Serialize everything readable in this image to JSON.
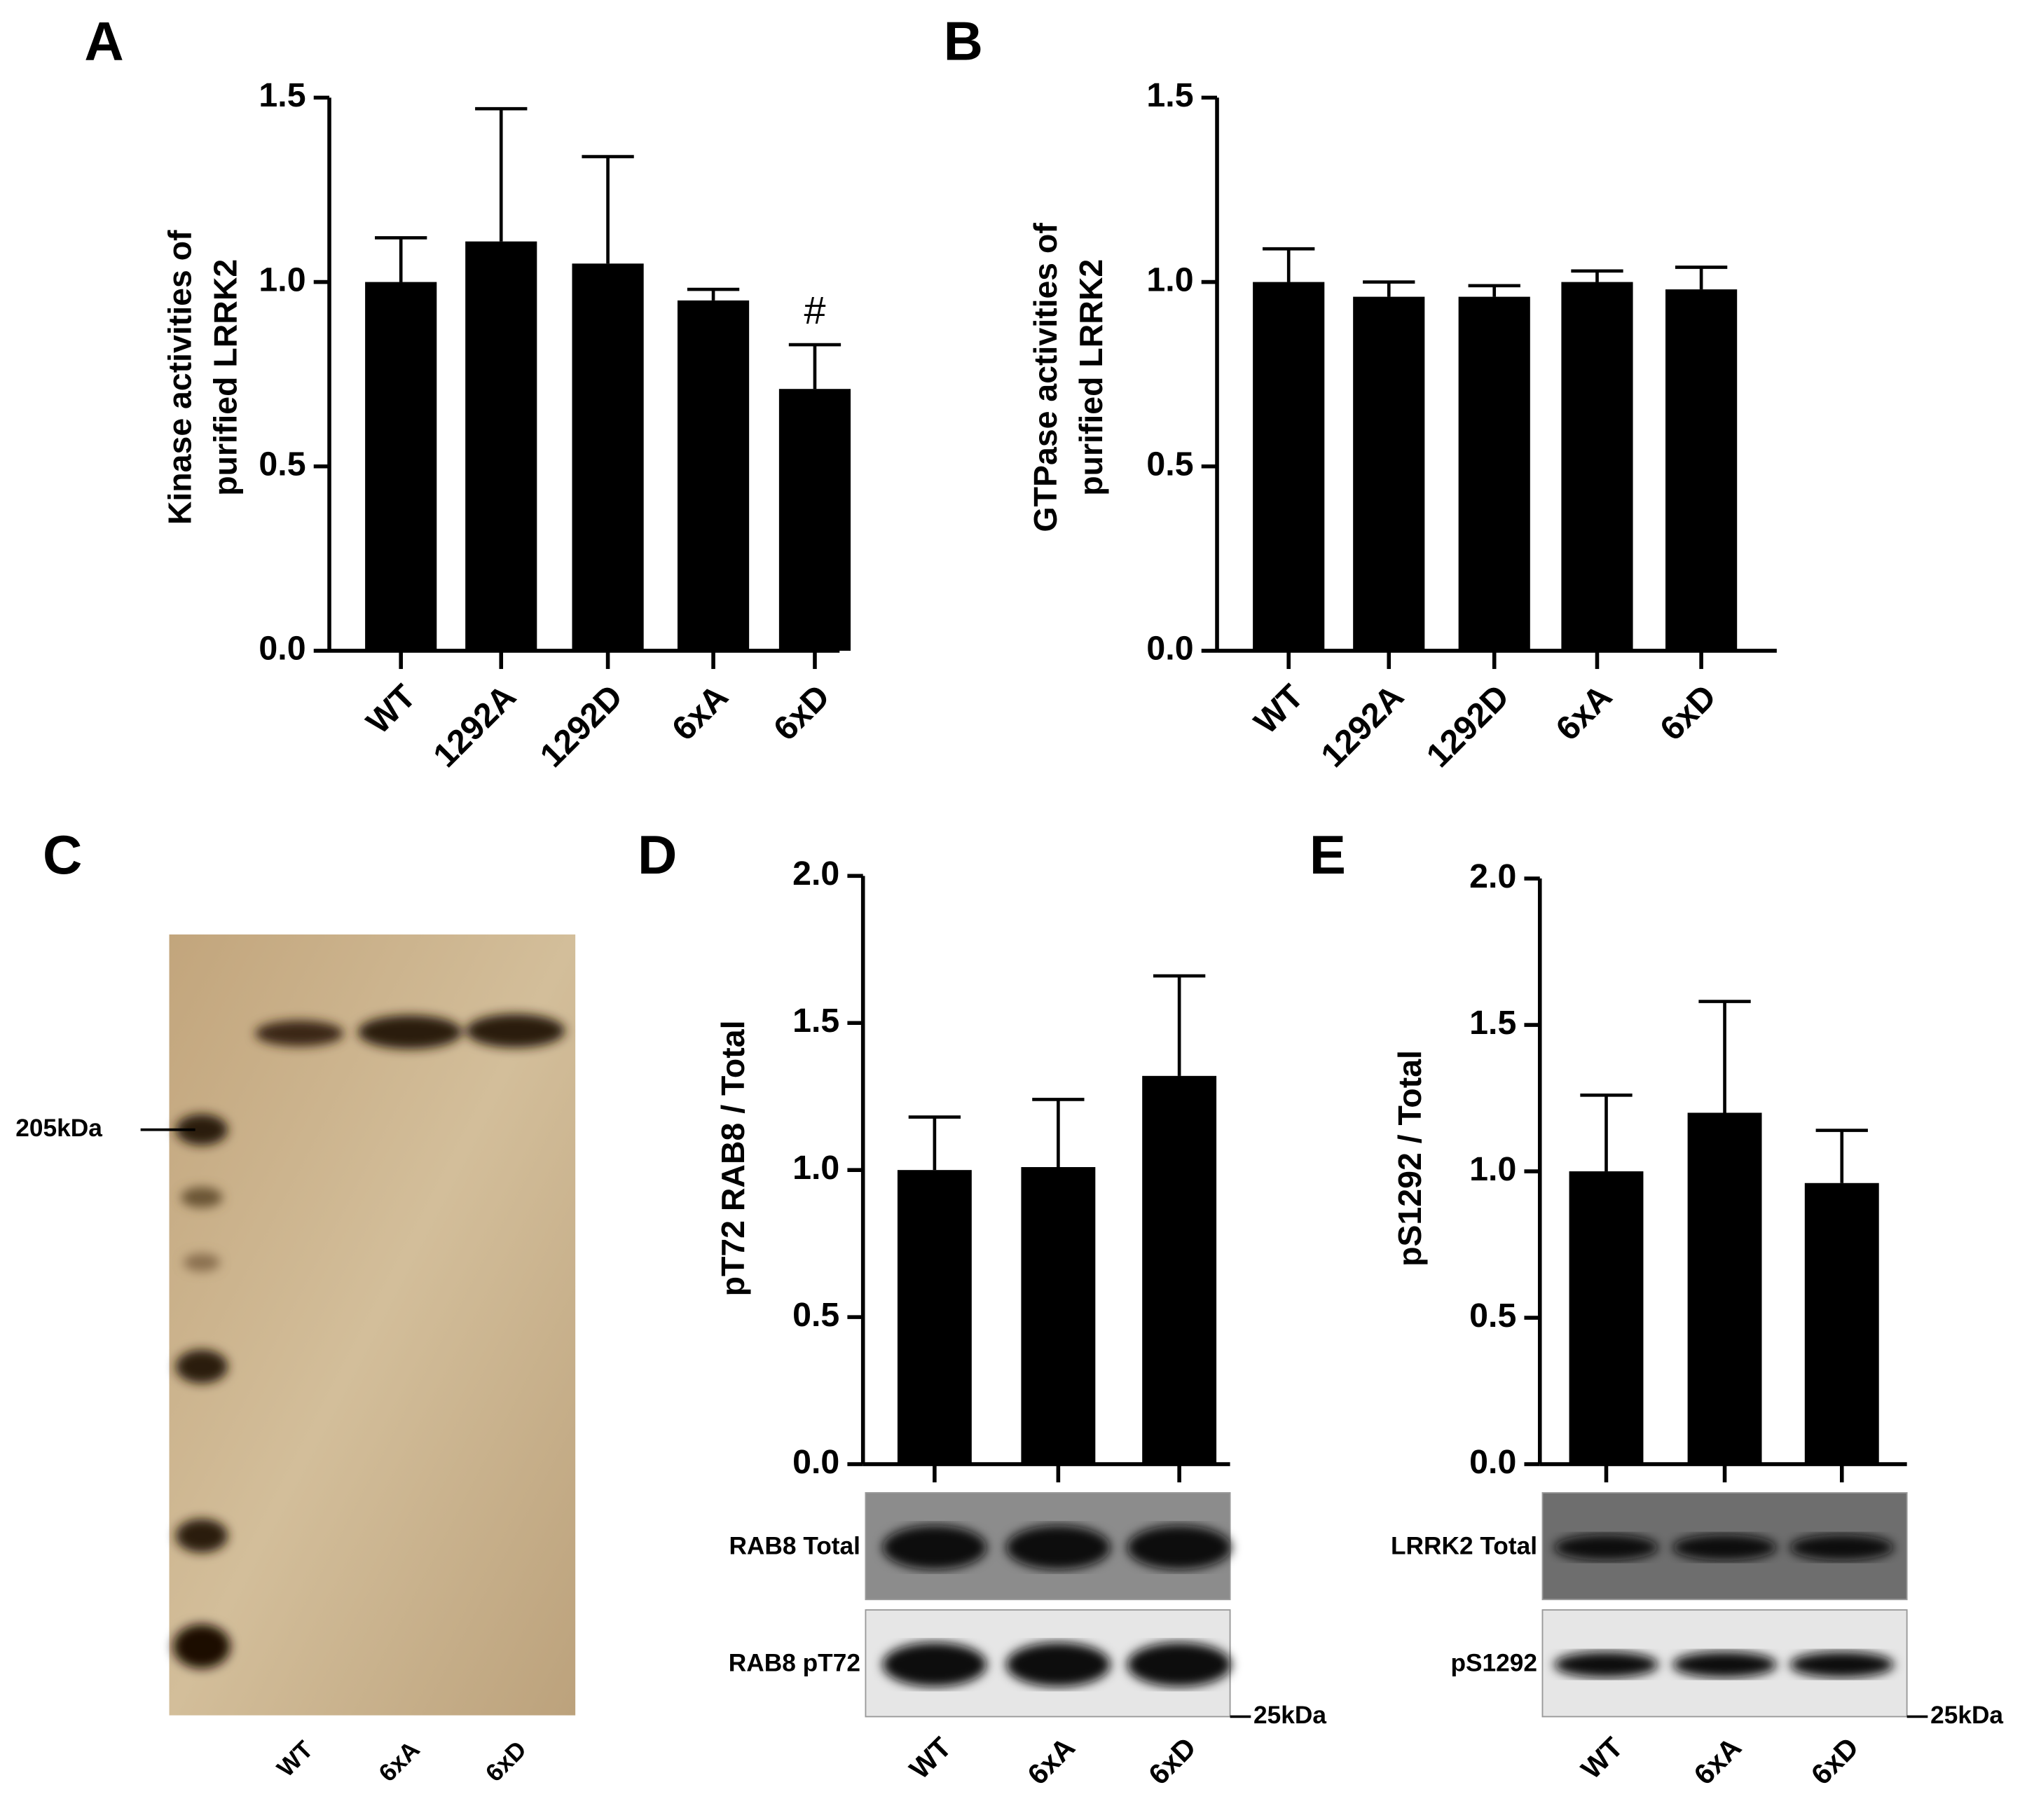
{
  "chart_data": [
    {
      "type": "bar",
      "panel": "A",
      "ylabel": [
        "Kinase activities of",
        "purified LRRK2"
      ],
      "categories": [
        "WT",
        "1292A",
        "1292D",
        "6xA",
        "6xD"
      ],
      "values": [
        1.0,
        1.11,
        1.05,
        0.95,
        0.71
      ],
      "errors": [
        0.12,
        0.36,
        0.29,
        0.03,
        0.12
      ],
      "annotation": "#",
      "color": "#000000",
      "ylim": [
        0,
        1.5
      ],
      "yticks": [
        {
          "value": 0,
          "label": "0.0"
        },
        0.5,
        {
          "value": 1,
          "label": "1.0"
        },
        1.5
      ]
    },
    {
      "type": "bar",
      "panel": "B",
      "ylabel": [
        "GTPase activities of",
        "purified LRRK2"
      ],
      "categories": [
        "WT",
        "1292A",
        "1292D",
        "6xA",
        "6xD"
      ],
      "values": [
        1.0,
        0.96,
        0.96,
        1.0,
        0.98
      ],
      "errors": [
        0.09,
        0.04,
        0.03,
        0.03,
        0.06
      ],
      "color": "#000000",
      "ylim": [
        0,
        1.5
      ],
      "yticks": [
        {
          "value": 0,
          "label": "0.0"
        },
        0.5,
        {
          "value": 1,
          "label": "1.0"
        },
        1.5
      ]
    },
    {
      "type": "bar",
      "panel": "D",
      "ylabel": [
        "pT72 RAB8 / Total"
      ],
      "categories": [
        "WT",
        "6xA",
        "6xD"
      ],
      "values": [
        1.0,
        1.01,
        1.32
      ],
      "errors": [
        0.18,
        0.23,
        0.34
      ],
      "color": "#000000",
      "blots": [
        "RAB8 Total",
        "RAB8 pT72"
      ],
      "marker": "25kDa",
      "ylim": [
        0,
        2
      ],
      "yticks": [
        {
          "value": 0,
          "label": "0.0"
        },
        0.5,
        {
          "value": 1,
          "label": "1.0"
        },
        1.5,
        {
          "value": 2,
          "label": "2.0"
        }
      ]
    },
    {
      "type": "bar",
      "panel": "E",
      "ylabel": [
        "pS1292 / Total"
      ],
      "categories": [
        "WT",
        "6xA",
        "6xD"
      ],
      "values": [
        1.0,
        1.2,
        0.96
      ],
      "errors": [
        0.26,
        0.38,
        0.18
      ],
      "color": "#000000",
      "blots": [
        "LRRK2 Total",
        "pS1292"
      ],
      "marker": "25kDa",
      "ylim": [
        0,
        2
      ],
      "yticks": [
        {
          "value": 0,
          "label": "0.0"
        },
        0.5,
        {
          "value": 1,
          "label": "1.0"
        },
        1.5,
        {
          "value": 2,
          "label": "2.0"
        }
      ]
    }
  ],
  "gel": {
    "panel": "C",
    "marker": "205kDa",
    "lanes": [
      "WT",
      "6xA",
      "6xD"
    ]
  }
}
